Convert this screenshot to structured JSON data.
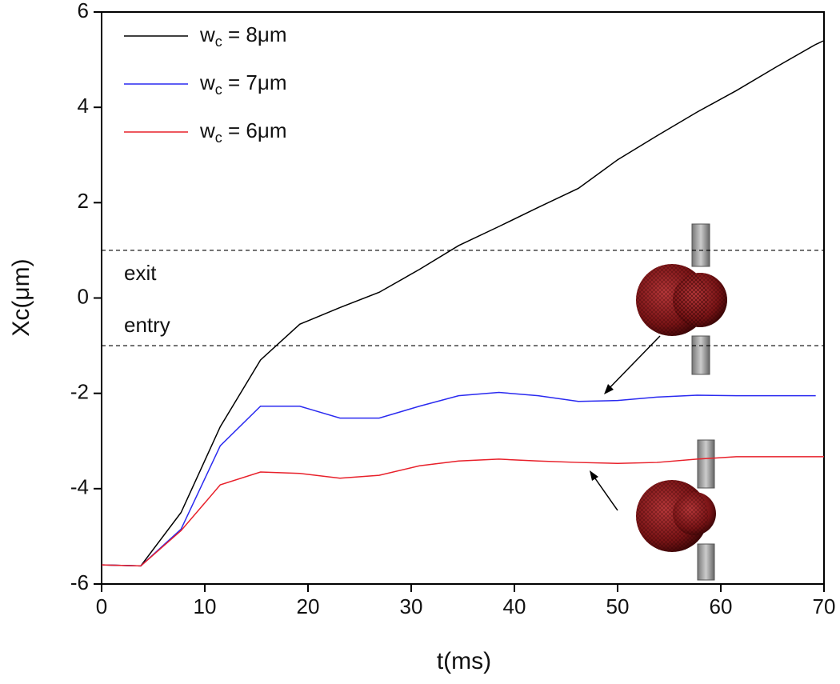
{
  "chart_data": {
    "type": "line",
    "x_label": "t(ms)",
    "y_label": "Xc(μm)",
    "xlim": [
      0,
      70
    ],
    "xticks": [
      0,
      10,
      20,
      30,
      40,
      50,
      60,
      70
    ],
    "ylim": [
      -6,
      6
    ],
    "yticks": [
      -6,
      -4,
      -2,
      0,
      2,
      4,
      6
    ],
    "legend": "upper left",
    "hlines": [
      1,
      -1
    ],
    "annotations": [
      "exit",
      "entry"
    ],
    "x": [
      0,
      3.8,
      7.7,
      11.5,
      15.4,
      19.2,
      23.1,
      26.9,
      30.8,
      34.6,
      38.5,
      42.3,
      46.2,
      50,
      53.8,
      57.7,
      61.5,
      65.4,
      69.2,
      70
    ],
    "series": [
      {
        "name": "wc = 8μm",
        "color": "#000000",
        "values": [
          -5.6,
          -5.62,
          -4.5,
          -2.7,
          -1.3,
          -0.55,
          -0.2,
          0.12,
          0.6,
          1.1,
          1.5,
          1.9,
          2.3,
          2.9,
          3.4,
          3.9,
          4.35,
          4.85,
          5.32,
          5.4
        ]
      },
      {
        "name": "wc = 7μm",
        "color": "#2a2af0",
        "values": [
          -5.6,
          -5.62,
          -4.85,
          -3.1,
          -2.27,
          -2.27,
          -2.52,
          -2.52,
          -2.27,
          -2.05,
          -1.98,
          -2.05,
          -2.17,
          -2.15,
          -2.08,
          -2.04,
          -2.05,
          -2.05,
          -2.05,
          null
        ]
      },
      {
        "name": "wc = 6μm",
        "color": "#e8202a",
        "values": [
          -5.6,
          -5.62,
          -4.88,
          -3.92,
          -3.65,
          -3.68,
          -3.78,
          -3.72,
          -3.52,
          -3.42,
          -3.38,
          -3.42,
          -3.45,
          -3.47,
          -3.45,
          -3.38,
          -3.33,
          -3.33,
          -3.33,
          -3.33
        ]
      }
    ]
  }
}
